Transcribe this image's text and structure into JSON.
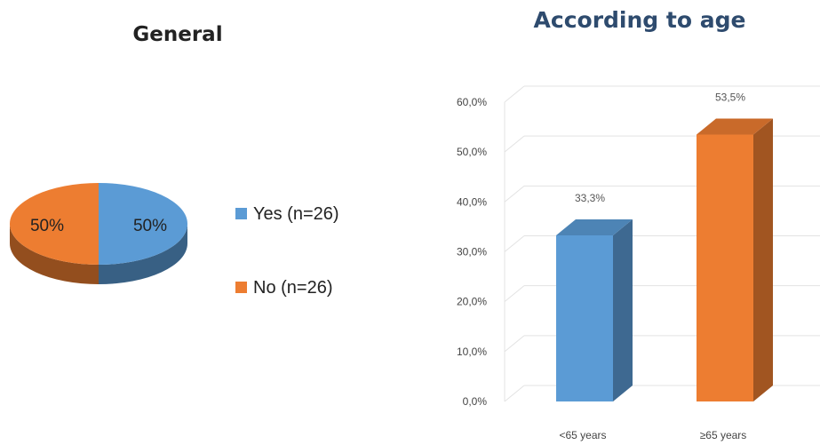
{
  "chart_data": [
    {
      "type": "pie",
      "title": "General",
      "labels": [
        "Yes (n=26)",
        "No (n=26)"
      ],
      "values": [
        50,
        50
      ],
      "slice_labels": [
        "50%",
        "50%"
      ],
      "colors": [
        "#5b9bd5",
        "#ed7d31"
      ],
      "legend_position": "right",
      "style": "3d"
    },
    {
      "type": "bar",
      "title": "According to age",
      "categories": [
        "<65 years",
        "≥65 years"
      ],
      "values": [
        33.3,
        53.5
      ],
      "data_labels": [
        "33,3%",
        "53,5%"
      ],
      "yticks": [
        "0,0%",
        "10,0%",
        "20,0%",
        "30,0%",
        "40,0%",
        "50,0%",
        "60,0%"
      ],
      "ylim": [
        0,
        60
      ],
      "colors": [
        "#5b9bd5",
        "#ed7d31"
      ],
      "grid": true,
      "style": "3d"
    }
  ]
}
